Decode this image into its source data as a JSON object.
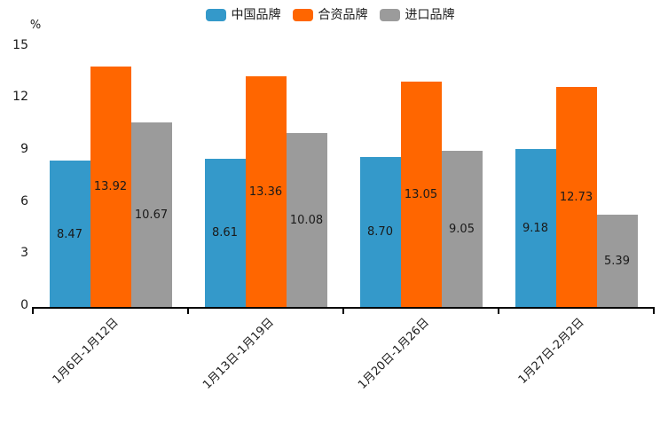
{
  "chart_data": {
    "type": "bar",
    "title": "",
    "ylabel": "%",
    "xlabel": "",
    "categories": [
      "1月6日-1月12日",
      "1月13日-1月19日",
      "1月20日-1月26日",
      "1月27日-2月2日"
    ],
    "series": [
      {
        "name": "中国品牌",
        "color": "#3499CA",
        "values": [
          8.47,
          8.61,
          8.7,
          9.18
        ]
      },
      {
        "name": "合资品牌",
        "color": "#FF6600",
        "values": [
          13.92,
          13.36,
          13.05,
          12.73
        ]
      },
      {
        "name": "进口品牌",
        "color": "#9B9B9B",
        "values": [
          10.67,
          10.08,
          9.05,
          5.39
        ]
      }
    ],
    "value_labels": [
      "8.47",
      "13.92",
      "10.67",
      "8.61",
      "13.36",
      "10.08",
      "8.70",
      "13.05",
      "9.05",
      "9.18",
      "12.73",
      "5.39"
    ],
    "ylim": [
      0,
      15
    ],
    "yticks": [
      0,
      3,
      6,
      9,
      12,
      15
    ],
    "legend_position": "top-center",
    "grid": false,
    "axis_color": "#000000",
    "text_color": "#1a1a1a"
  }
}
